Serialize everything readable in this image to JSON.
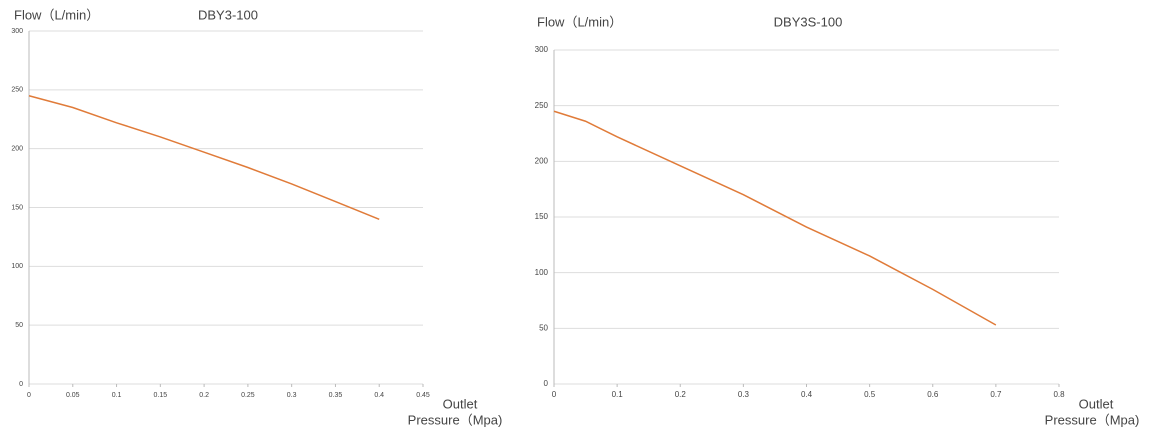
{
  "chart_data": [
    {
      "type": "line",
      "title": "DBY3-100",
      "y_label": "Flow（L/min）",
      "x_label_lines": [
        "Outlet",
        "Pressure（Mpa)"
      ],
      "x": [
        0,
        0.05,
        0.1,
        0.15,
        0.2,
        0.25,
        0.3,
        0.35,
        0.4
      ],
      "series": [
        {
          "color": "#e07b39",
          "values": [
            245,
            235,
            222,
            210,
            197,
            184,
            170,
            155,
            140
          ]
        }
      ],
      "xlim": [
        0,
        0.45
      ],
      "xticks": [
        0,
        0.05,
        0.1,
        0.15,
        0.2,
        0.25,
        0.3,
        0.35,
        0.4,
        0.45
      ],
      "ylim": [
        0,
        300
      ],
      "yticks": [
        0,
        50,
        100,
        150,
        200,
        250,
        300
      ],
      "grid": true
    },
    {
      "type": "line",
      "title": "DBY3S-100",
      "y_label": "Flow（L/min）",
      "x_label_lines": [
        "Outlet",
        "Pressure（Mpa)"
      ],
      "x": [
        0,
        0.05,
        0.1,
        0.2,
        0.3,
        0.4,
        0.5,
        0.6,
        0.7
      ],
      "series": [
        {
          "color": "#e07b39",
          "values": [
            245,
            236,
            222,
            196,
            170,
            141,
            115,
            85,
            53
          ]
        }
      ],
      "xlim": [
        0,
        0.8
      ],
      "xticks": [
        0,
        0.1,
        0.2,
        0.3,
        0.4,
        0.5,
        0.6,
        0.7,
        0.8
      ],
      "ylim": [
        0,
        300
      ],
      "yticks": [
        0,
        50,
        100,
        150,
        200,
        250,
        300
      ],
      "grid": true
    }
  ]
}
